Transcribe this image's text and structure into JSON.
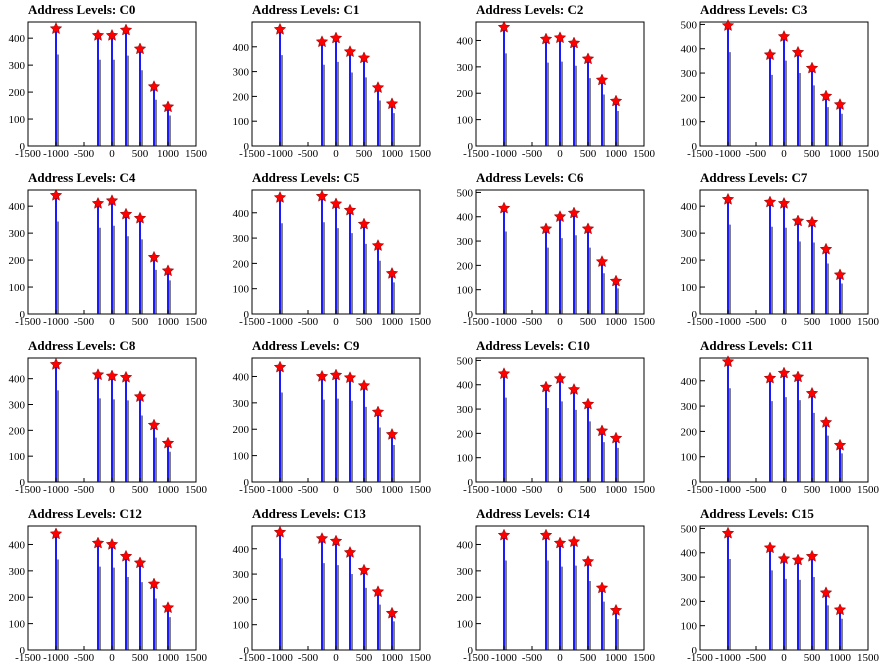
{
  "chart_data": [
    {
      "type": "bar",
      "title": "Address Levels: C0",
      "xlim": [
        -1500,
        1500
      ],
      "ylim": [
        0,
        460
      ],
      "xticks": [
        -1500,
        -1000,
        -500,
        0,
        500,
        1000,
        1500
      ],
      "yticks": [
        0,
        100,
        200,
        300,
        400
      ],
      "peaks": [
        {
          "x": -1000,
          "y": 435
        },
        {
          "x": -250,
          "y": 410
        },
        {
          "x": 0,
          "y": 410
        },
        {
          "x": 250,
          "y": 430
        },
        {
          "x": 500,
          "y": 360
        },
        {
          "x": 750,
          "y": 220
        },
        {
          "x": 1000,
          "y": 145
        }
      ]
    },
    {
      "type": "bar",
      "title": "Address Levels: C1",
      "xlim": [
        -1500,
        1500
      ],
      "ylim": [
        0,
        500
      ],
      "xticks": [
        -1500,
        -1000,
        -500,
        0,
        500,
        1000,
        1500
      ],
      "yticks": [
        0,
        100,
        200,
        300,
        400
      ],
      "peaks": [
        {
          "x": -1000,
          "y": 470
        },
        {
          "x": -250,
          "y": 420
        },
        {
          "x": 0,
          "y": 435
        },
        {
          "x": 250,
          "y": 380
        },
        {
          "x": 500,
          "y": 355
        },
        {
          "x": 750,
          "y": 235
        },
        {
          "x": 1000,
          "y": 170
        }
      ]
    },
    {
      "type": "bar",
      "title": "Address Levels: C2",
      "xlim": [
        -1500,
        1500
      ],
      "ylim": [
        0,
        470
      ],
      "xticks": [
        -1500,
        -1000,
        -500,
        0,
        500,
        1000,
        1500
      ],
      "yticks": [
        0,
        100,
        200,
        300,
        400
      ],
      "peaks": [
        {
          "x": -1000,
          "y": 450
        },
        {
          "x": -250,
          "y": 405
        },
        {
          "x": 0,
          "y": 410
        },
        {
          "x": 250,
          "y": 390
        },
        {
          "x": 500,
          "y": 330
        },
        {
          "x": 750,
          "y": 250
        },
        {
          "x": 1000,
          "y": 170
        }
      ]
    },
    {
      "type": "bar",
      "title": "Address Levels: C3",
      "xlim": [
        -1500,
        1500
      ],
      "ylim": [
        0,
        510
      ],
      "xticks": [
        -1500,
        -1000,
        -500,
        0,
        500,
        1000,
        1500
      ],
      "yticks": [
        0,
        100,
        200,
        300,
        400,
        500
      ],
      "peaks": [
        {
          "x": -1000,
          "y": 495
        },
        {
          "x": -250,
          "y": 375
        },
        {
          "x": 0,
          "y": 450
        },
        {
          "x": 250,
          "y": 385
        },
        {
          "x": 500,
          "y": 320
        },
        {
          "x": 750,
          "y": 205
        },
        {
          "x": 1000,
          "y": 170
        }
      ]
    },
    {
      "type": "bar",
      "title": "Address Levels: C4",
      "xlim": [
        -1500,
        1500
      ],
      "ylim": [
        0,
        460
      ],
      "xticks": [
        -1500,
        -1000,
        -500,
        0,
        500,
        1000,
        1500
      ],
      "yticks": [
        0,
        100,
        200,
        300,
        400
      ],
      "peaks": [
        {
          "x": -1000,
          "y": 440
        },
        {
          "x": -250,
          "y": 410
        },
        {
          "x": 0,
          "y": 420
        },
        {
          "x": 250,
          "y": 370
        },
        {
          "x": 500,
          "y": 355
        },
        {
          "x": 750,
          "y": 210
        },
        {
          "x": 1000,
          "y": 160
        }
      ]
    },
    {
      "type": "bar",
      "title": "Address Levels: C5",
      "xlim": [
        -1500,
        1500
      ],
      "ylim": [
        0,
        490
      ],
      "xticks": [
        -1500,
        -1000,
        -500,
        0,
        500,
        1000,
        1500
      ],
      "yticks": [
        0,
        100,
        200,
        300,
        400
      ],
      "peaks": [
        {
          "x": -1000,
          "y": 460
        },
        {
          "x": -250,
          "y": 465
        },
        {
          "x": 0,
          "y": 435
        },
        {
          "x": 250,
          "y": 410
        },
        {
          "x": 500,
          "y": 355
        },
        {
          "x": 750,
          "y": 270
        },
        {
          "x": 1000,
          "y": 160
        }
      ]
    },
    {
      "type": "bar",
      "title": "Address Levels: C6",
      "xlim": [
        -1500,
        1500
      ],
      "ylim": [
        0,
        510
      ],
      "xticks": [
        -1500,
        -1000,
        -500,
        0,
        500,
        1000,
        1500
      ],
      "yticks": [
        0,
        100,
        200,
        300,
        400,
        500
      ],
      "peaks": [
        {
          "x": -1000,
          "y": 435
        },
        {
          "x": -250,
          "y": 350
        },
        {
          "x": 0,
          "y": 400
        },
        {
          "x": 250,
          "y": 415
        },
        {
          "x": 500,
          "y": 350
        },
        {
          "x": 750,
          "y": 215
        },
        {
          "x": 1000,
          "y": 135
        }
      ]
    },
    {
      "type": "bar",
      "title": "Address Levels: C7",
      "xlim": [
        -1500,
        1500
      ],
      "ylim": [
        0,
        460
      ],
      "xticks": [
        -1500,
        -1000,
        -500,
        0,
        500,
        1000,
        1500
      ],
      "yticks": [
        0,
        100,
        200,
        300,
        400
      ],
      "peaks": [
        {
          "x": -1000,
          "y": 425
        },
        {
          "x": -250,
          "y": 415
        },
        {
          "x": 0,
          "y": 410
        },
        {
          "x": 250,
          "y": 345
        },
        {
          "x": 500,
          "y": 340
        },
        {
          "x": 750,
          "y": 240
        },
        {
          "x": 1000,
          "y": 145
        }
      ]
    },
    {
      "type": "bar",
      "title": "Address Levels: C8",
      "xlim": [
        -1500,
        1500
      ],
      "ylim": [
        0,
        480
      ],
      "xticks": [
        -1500,
        -1000,
        -500,
        0,
        500,
        1000,
        1500
      ],
      "yticks": [
        0,
        100,
        200,
        300,
        400
      ],
      "peaks": [
        {
          "x": -1000,
          "y": 455
        },
        {
          "x": -250,
          "y": 415
        },
        {
          "x": 0,
          "y": 410
        },
        {
          "x": 250,
          "y": 405
        },
        {
          "x": 500,
          "y": 330
        },
        {
          "x": 750,
          "y": 220
        },
        {
          "x": 1000,
          "y": 150
        }
      ]
    },
    {
      "type": "bar",
      "title": "Address Levels: C9",
      "xlim": [
        -1500,
        1500
      ],
      "ylim": [
        0,
        470
      ],
      "xticks": [
        -1500,
        -1000,
        -500,
        0,
        500,
        1000,
        1500
      ],
      "yticks": [
        0,
        100,
        200,
        300,
        400
      ],
      "peaks": [
        {
          "x": -1000,
          "y": 435
        },
        {
          "x": -250,
          "y": 400
        },
        {
          "x": 0,
          "y": 405
        },
        {
          "x": 250,
          "y": 395
        },
        {
          "x": 500,
          "y": 365
        },
        {
          "x": 750,
          "y": 265
        },
        {
          "x": 1000,
          "y": 180
        }
      ]
    },
    {
      "type": "bar",
      "title": "Address Levels: C10",
      "xlim": [
        -1500,
        1500
      ],
      "ylim": [
        0,
        510
      ],
      "xticks": [
        -1500,
        -1000,
        -500,
        0,
        500,
        1000,
        1500
      ],
      "yticks": [
        0,
        100,
        200,
        300,
        400,
        500
      ],
      "peaks": [
        {
          "x": -1000,
          "y": 445
        },
        {
          "x": -250,
          "y": 390
        },
        {
          "x": 0,
          "y": 425
        },
        {
          "x": 250,
          "y": 380
        },
        {
          "x": 500,
          "y": 320
        },
        {
          "x": 750,
          "y": 210
        },
        {
          "x": 1000,
          "y": 180
        }
      ]
    },
    {
      "type": "bar",
      "title": "Address Levels: C11",
      "xlim": [
        -1500,
        1500
      ],
      "ylim": [
        0,
        490
      ],
      "xticks": [
        -1500,
        -1000,
        -500,
        0,
        500,
        1000,
        1500
      ],
      "yticks": [
        0,
        100,
        200,
        300,
        400
      ],
      "peaks": [
        {
          "x": -1000,
          "y": 475
        },
        {
          "x": -250,
          "y": 410
        },
        {
          "x": 0,
          "y": 430
        },
        {
          "x": 250,
          "y": 415
        },
        {
          "x": 500,
          "y": 350
        },
        {
          "x": 750,
          "y": 235
        },
        {
          "x": 1000,
          "y": 145
        }
      ]
    },
    {
      "type": "bar",
      "title": "Address Levels: C12",
      "xlim": [
        -1500,
        1500
      ],
      "ylim": [
        0,
        470
      ],
      "xticks": [
        -1500,
        -1000,
        -500,
        0,
        500,
        1000,
        1500
      ],
      "yticks": [
        0,
        100,
        200,
        300,
        400
      ],
      "peaks": [
        {
          "x": -1000,
          "y": 440
        },
        {
          "x": -250,
          "y": 405
        },
        {
          "x": 0,
          "y": 400
        },
        {
          "x": 250,
          "y": 355
        },
        {
          "x": 500,
          "y": 330
        },
        {
          "x": 750,
          "y": 250
        },
        {
          "x": 1000,
          "y": 160
        }
      ]
    },
    {
      "type": "bar",
      "title": "Address Levels: C13",
      "xlim": [
        -1500,
        1500
      ],
      "ylim": [
        0,
        490
      ],
      "xticks": [
        -1500,
        -1000,
        -500,
        0,
        500,
        1000,
        1500
      ],
      "yticks": [
        0,
        100,
        200,
        300,
        400
      ],
      "peaks": [
        {
          "x": -1000,
          "y": 465
        },
        {
          "x": -250,
          "y": 440
        },
        {
          "x": 0,
          "y": 430
        },
        {
          "x": 250,
          "y": 385
        },
        {
          "x": 500,
          "y": 315
        },
        {
          "x": 750,
          "y": 230
        },
        {
          "x": 1000,
          "y": 145
        }
      ]
    },
    {
      "type": "bar",
      "title": "Address Levels: C14",
      "xlim": [
        -1500,
        1500
      ],
      "ylim": [
        0,
        470
      ],
      "xticks": [
        -1500,
        -1000,
        -500,
        0,
        500,
        1000,
        1500
      ],
      "yticks": [
        0,
        100,
        200,
        300,
        400
      ],
      "peaks": [
        {
          "x": -1000,
          "y": 435
        },
        {
          "x": -250,
          "y": 435
        },
        {
          "x": 0,
          "y": 405
        },
        {
          "x": 250,
          "y": 410
        },
        {
          "x": 500,
          "y": 335
        },
        {
          "x": 750,
          "y": 235
        },
        {
          "x": 1000,
          "y": 150
        }
      ]
    },
    {
      "type": "bar",
      "title": "Address Levels: C15",
      "xlim": [
        -1500,
        1500
      ],
      "ylim": [
        0,
        510
      ],
      "xticks": [
        -1500,
        -1000,
        -500,
        0,
        500,
        1000,
        1500
      ],
      "yticks": [
        0,
        100,
        200,
        300,
        400,
        500
      ],
      "peaks": [
        {
          "x": -1000,
          "y": 480
        },
        {
          "x": -250,
          "y": 420
        },
        {
          "x": 0,
          "y": 375
        },
        {
          "x": 250,
          "y": 370
        },
        {
          "x": 500,
          "y": 385
        },
        {
          "x": 750,
          "y": 235
        },
        {
          "x": 1000,
          "y": 165
        }
      ]
    }
  ],
  "colors": {
    "bar": "#0000ff",
    "star": "#ff0000",
    "axis": "#000000",
    "shadow_bar": "#000000"
  }
}
